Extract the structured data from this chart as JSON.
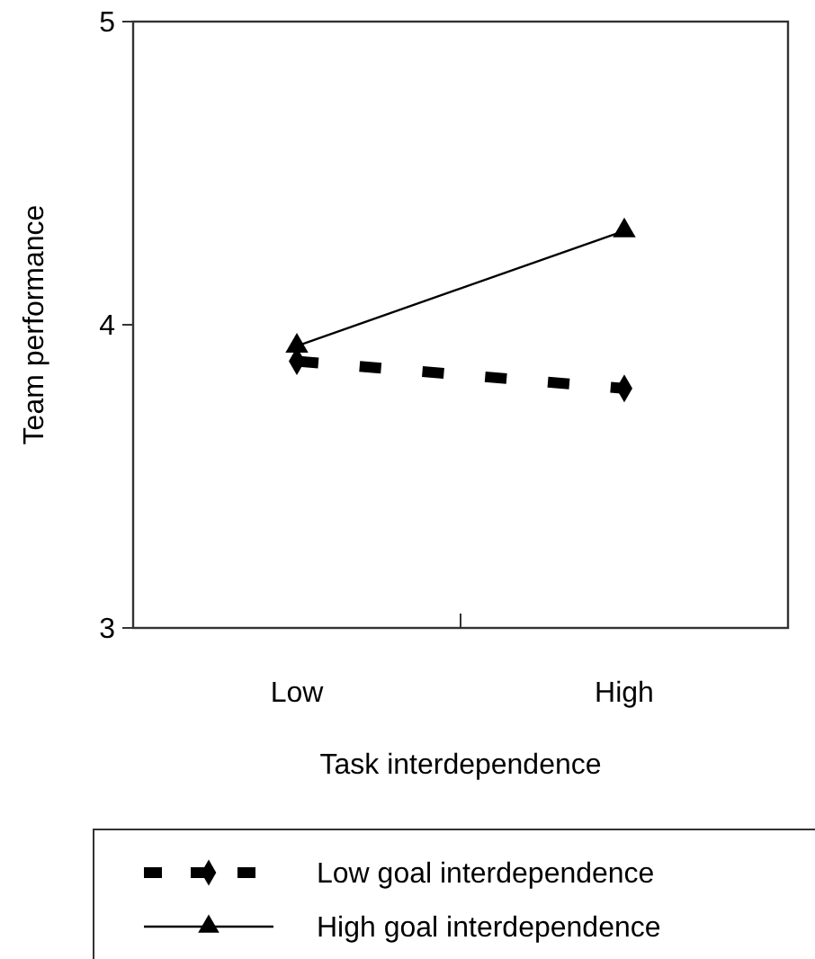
{
  "chart_data": {
    "type": "line",
    "xlabel": "Task interdependence",
    "ylabel": "Team performance",
    "categories": [
      "Low",
      "High"
    ],
    "ylim": [
      3,
      5
    ],
    "yticks": [
      3,
      4,
      5
    ],
    "legend": "bottom",
    "grid": false,
    "series": [
      {
        "name": "Low goal interdependence",
        "color": "#000000",
        "values": [
          3.88,
          3.79
        ],
        "line_style": "dashed",
        "marker": "diamond"
      },
      {
        "name": "High goal interdependence",
        "color": "#000000",
        "values": [
          3.93,
          4.31
        ],
        "line_style": "solid",
        "marker": "triangle"
      }
    ]
  }
}
